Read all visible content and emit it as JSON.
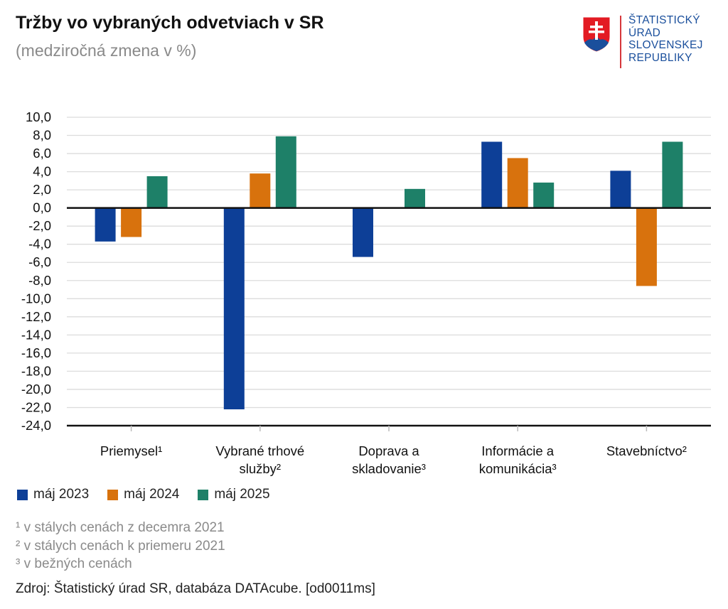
{
  "header": {
    "title": "Tržby vo vybraných odvetviach v SR",
    "subtitle": "(medziročná zmena v %)"
  },
  "logo": {
    "lines": [
      "ŠTATISTICKÝ",
      "ÚRAD",
      "SLOVENSKEJ",
      "REPUBLIKY"
    ]
  },
  "chart_data": {
    "type": "bar",
    "title": "Tržby vo vybraných odvetviach v SR",
    "subtitle": "(medziročná zmena v %)",
    "xlabel": "",
    "ylabel": "",
    "ylim": [
      -24,
      10
    ],
    "yticks": [
      "10,0",
      "8,0",
      "6,0",
      "4,0",
      "2,0",
      "0,0",
      "-2,0",
      "-4,0",
      "-6,0",
      "-8,0",
      "-10,0",
      "-12,0",
      "-14,0",
      "-16,0",
      "-18,0",
      "-20,0",
      "-22,0",
      "-24,0"
    ],
    "ytick_values": [
      10,
      8,
      6,
      4,
      2,
      0,
      -2,
      -4,
      -6,
      -8,
      -10,
      -12,
      -14,
      -16,
      -18,
      -20,
      -22,
      -24
    ],
    "categories": [
      [
        "Priemysel¹"
      ],
      [
        "Vybrané trhové",
        "služby²"
      ],
      [
        "Doprava a",
        "skladovanie³"
      ],
      [
        "Informácie a",
        "komunikácia³"
      ],
      [
        "Stavebníctvo²"
      ]
    ],
    "series": [
      {
        "name": "máj 2023",
        "color": "#0d3f97",
        "values": [
          -3.7,
          -22.2,
          -5.4,
          7.3,
          4.1
        ]
      },
      {
        "name": "máj 2024",
        "color": "#d8720d",
        "values": [
          -3.2,
          3.8,
          0.0,
          5.5,
          -8.6
        ]
      },
      {
        "name": "máj 2025",
        "color": "#1e8068",
        "values": [
          3.5,
          7.9,
          2.1,
          2.8,
          7.3
        ]
      }
    ],
    "grid": true,
    "legend_position": "bottom-left"
  },
  "footnotes": [
    "¹ v stálych cenách z decemra 2021",
    "² v stálych cenách k priemeru 2021",
    "³ v bežných cenách"
  ],
  "source": "Zdroj: Štatistický úrad SR, databáza DATAcube. [od0011ms]"
}
